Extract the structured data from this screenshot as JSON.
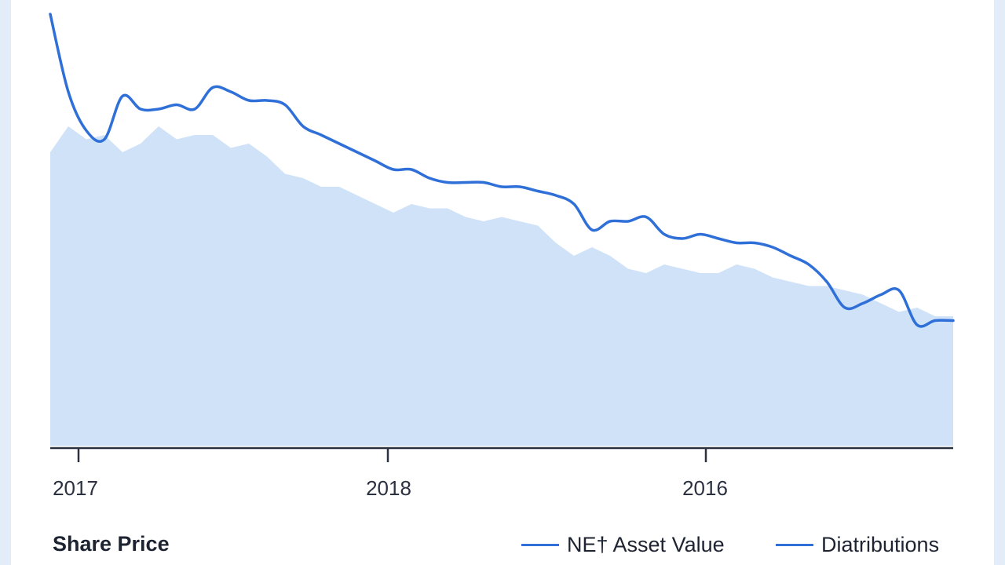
{
  "chart_data": {
    "type": "area",
    "title": "",
    "xlabel": "",
    "ylabel": "",
    "x_tick_labels": [
      "2017",
      "2018",
      "2016"
    ],
    "grid": false,
    "legend": {
      "title": "Share Price",
      "placement": "bottom",
      "entries": [
        {
          "name": "NE† Asset Value",
          "color": "#2f6fd8"
        },
        {
          "name": "Diatributions",
          "color": "#2f6fd8"
        }
      ]
    },
    "series": [
      {
        "name": "NE† Asset Value",
        "kind": "line",
        "color": "#2f6fd8",
        "values": [
          100,
          82,
          73,
          71,
          81,
          78,
          78,
          79,
          78,
          83,
          82,
          80,
          80,
          79,
          74,
          72,
          70,
          68,
          66,
          64,
          64,
          62,
          61,
          61,
          61,
          60,
          60,
          59,
          58,
          56,
          50,
          52,
          52,
          53,
          49,
          48,
          49,
          48,
          47,
          47,
          46,
          44,
          42,
          38,
          32,
          33,
          35,
          36,
          28,
          29,
          29
        ]
      },
      {
        "name": "Diatributions",
        "kind": "area",
        "color": "#cfe2f8",
        "values": [
          68,
          74,
          71,
          72,
          68,
          70,
          74,
          71,
          72,
          72,
          69,
          70,
          67,
          63,
          62,
          60,
          60,
          58,
          56,
          54,
          56,
          55,
          55,
          53,
          52,
          53,
          52,
          51,
          47,
          44,
          46,
          44,
          41,
          40,
          42,
          41,
          40,
          40,
          42,
          41,
          39,
          38,
          37,
          37,
          36,
          35,
          33,
          31,
          32,
          30,
          30
        ]
      }
    ]
  }
}
